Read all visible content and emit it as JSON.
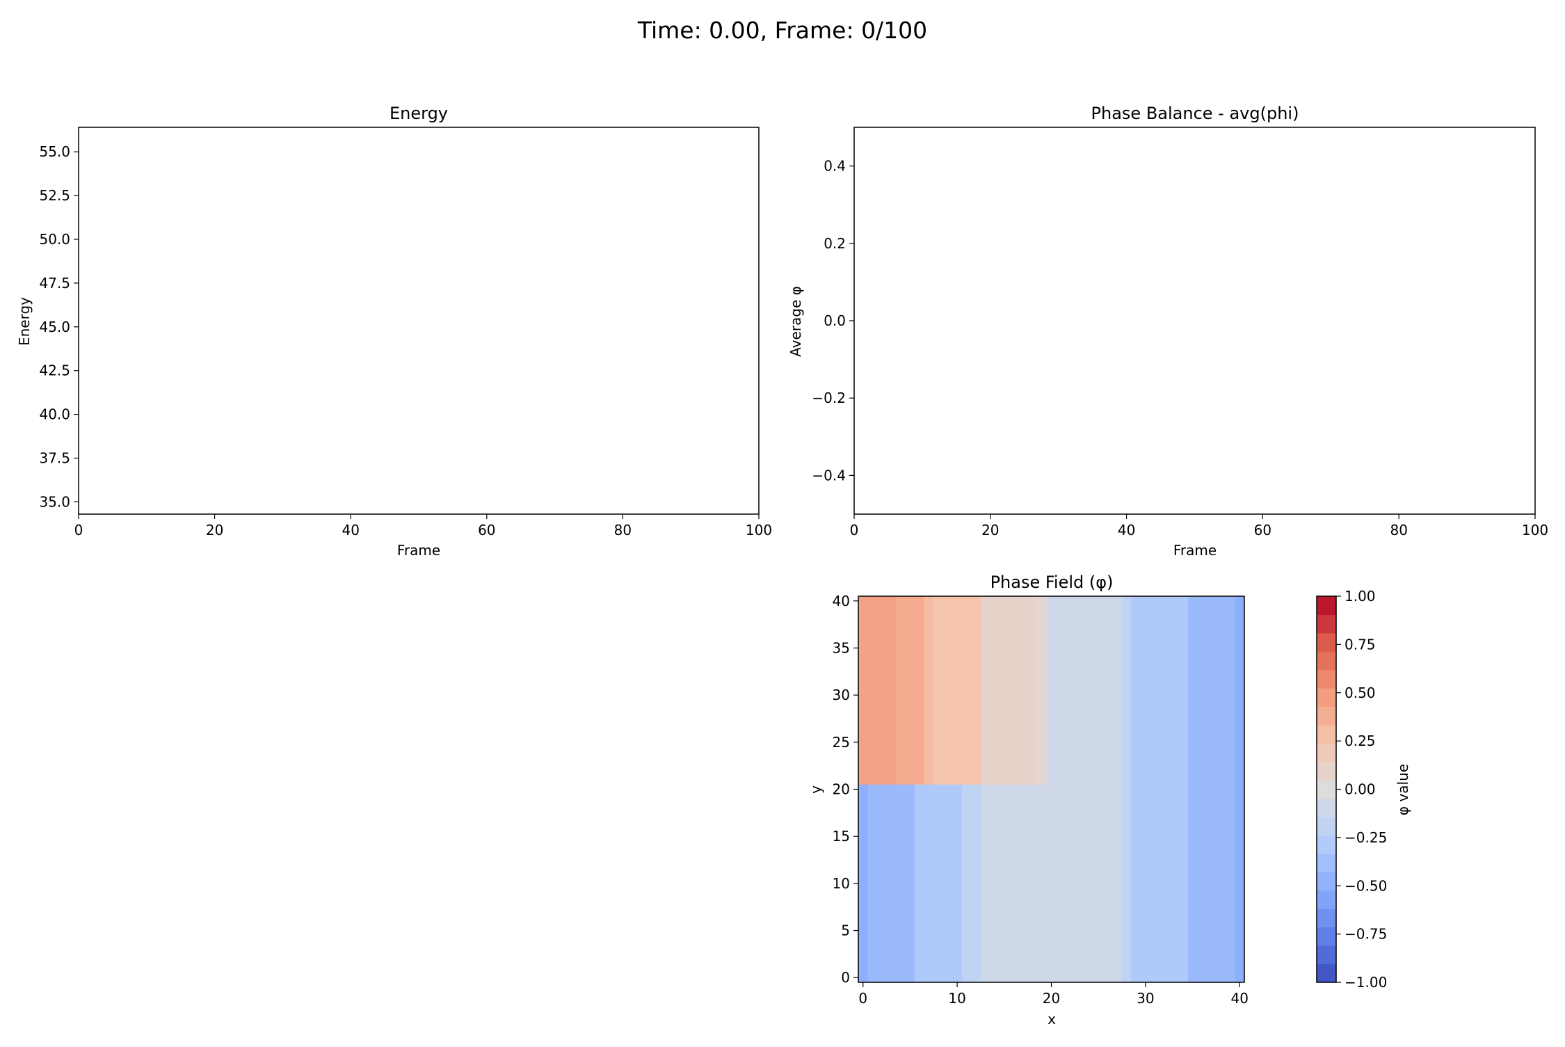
{
  "suptitle": "Time: 0.00, Frame: 0/100",
  "chart_data": [
    {
      "type": "line",
      "title": "Energy",
      "xlabel": "Frame",
      "ylabel": "Energy",
      "xlim": [
        0,
        100
      ],
      "ylim": [
        34.3,
        56.4
      ],
      "x_ticks": [
        "0",
        "20",
        "40",
        "60",
        "80",
        "100"
      ],
      "x_tick_values": [
        0,
        20,
        40,
        60,
        80,
        100
      ],
      "y_ticks": [
        "35.0",
        "37.5",
        "40.0",
        "42.5",
        "45.0",
        "47.5",
        "50.0",
        "52.5",
        "55.0"
      ],
      "y_tick_values": [
        35.0,
        37.5,
        40.0,
        42.5,
        45.0,
        47.5,
        50.0,
        52.5,
        55.0
      ],
      "series": []
    },
    {
      "type": "line",
      "title": "Phase Balance - avg(phi)",
      "xlabel": "Frame",
      "ylabel": "Average φ",
      "xlim": [
        0,
        100
      ],
      "ylim": [
        -0.5,
        0.5
      ],
      "x_ticks": [
        "0",
        "20",
        "40",
        "60",
        "80",
        "100"
      ],
      "x_tick_values": [
        0,
        20,
        40,
        60,
        80,
        100
      ],
      "y_ticks": [
        "−0.4",
        "−0.2",
        "0.0",
        "0.2",
        "0.4"
      ],
      "y_tick_values": [
        -0.4,
        -0.2,
        0.0,
        0.2,
        0.4
      ],
      "series": []
    },
    {
      "type": "heatmap",
      "title": "Phase Field (φ)",
      "xlabel": "x",
      "ylabel": "y",
      "xlim": [
        -0.5,
        40.5
      ],
      "ylim": [
        -0.5,
        40.5
      ],
      "x_ticks": [
        "0",
        "10",
        "20",
        "30",
        "40"
      ],
      "x_tick_values": [
        0,
        10,
        20,
        30,
        40
      ],
      "y_ticks": [
        "0",
        "5",
        "10",
        "15",
        "20",
        "25",
        "30",
        "35",
        "40"
      ],
      "y_tick_values": [
        0,
        5,
        10,
        15,
        20,
        25,
        30,
        35,
        40
      ],
      "colormap": "coolwarm",
      "vmin": -1.0,
      "vmax": 1.0,
      "colorbar_label": "φ value",
      "colorbar_ticks": [
        "−1.00",
        "−0.75",
        "−0.50",
        "−0.25",
        "0.00",
        "0.25",
        "0.50",
        "0.75",
        "1.00"
      ],
      "colorbar_tick_values": [
        -1.0,
        -0.75,
        -0.5,
        -0.25,
        0.0,
        0.25,
        0.5,
        0.75,
        1.0
      ],
      "regions": [
        {
          "x_range": [
            -0.5,
            3.5
          ],
          "y_range": [
            20.5,
            40.5
          ],
          "value": 0.45
        },
        {
          "x_range": [
            3.5,
            6.5
          ],
          "y_range": [
            20.5,
            40.5
          ],
          "value": 0.4
        },
        {
          "x_range": [
            6.5,
            7.5
          ],
          "y_range": [
            20.5,
            40.5
          ],
          "value": 0.3
        },
        {
          "x_range": [
            7.5,
            12.5
          ],
          "y_range": [
            20.5,
            40.5
          ],
          "value": 0.25
        },
        {
          "x_range": [
            12.5,
            18.5
          ],
          "y_range": [
            20.5,
            40.5
          ],
          "value": 0.1
        },
        {
          "x_range": [
            18.5,
            19.5
          ],
          "y_range": [
            20.5,
            40.5
          ],
          "value": 0.05
        },
        {
          "x_range": [
            19.5,
            27.5
          ],
          "y_range": [
            20.5,
            40.5
          ],
          "value": -0.1
        },
        {
          "x_range": [
            27.5,
            28.5
          ],
          "y_range": [
            20.5,
            40.5
          ],
          "value": -0.2
        },
        {
          "x_range": [
            28.5,
            34.5
          ],
          "y_range": [
            20.5,
            40.5
          ],
          "value": -0.3
        },
        {
          "x_range": [
            34.5,
            39.5
          ],
          "y_range": [
            20.5,
            40.5
          ],
          "value": -0.42
        },
        {
          "x_range": [
            39.5,
            40.5
          ],
          "y_range": [
            20.5,
            40.5
          ],
          "value": -0.5
        },
        {
          "x_range": [
            -0.5,
            0.5
          ],
          "y_range": [
            -0.5,
            20.5
          ],
          "value": -0.5
        },
        {
          "x_range": [
            0.5,
            5.5
          ],
          "y_range": [
            -0.5,
            20.5
          ],
          "value": -0.42
        },
        {
          "x_range": [
            5.5,
            10.5
          ],
          "y_range": [
            -0.5,
            20.5
          ],
          "value": -0.3
        },
        {
          "x_range": [
            10.5,
            12.5
          ],
          "y_range": [
            -0.5,
            20.5
          ],
          "value": -0.2
        },
        {
          "x_range": [
            12.5,
            27.5
          ],
          "y_range": [
            -0.5,
            20.5
          ],
          "value": -0.1
        },
        {
          "x_range": [
            27.5,
            28.5
          ],
          "y_range": [
            -0.5,
            20.5
          ],
          "value": -0.2
        },
        {
          "x_range": [
            28.5,
            34.5
          ],
          "y_range": [
            -0.5,
            20.5
          ],
          "value": -0.3
        },
        {
          "x_range": [
            34.5,
            39.5
          ],
          "y_range": [
            -0.5,
            20.5
          ],
          "value": -0.42
        },
        {
          "x_range": [
            39.5,
            40.5
          ],
          "y_range": [
            -0.5,
            20.5
          ],
          "value": -0.5
        }
      ]
    }
  ]
}
